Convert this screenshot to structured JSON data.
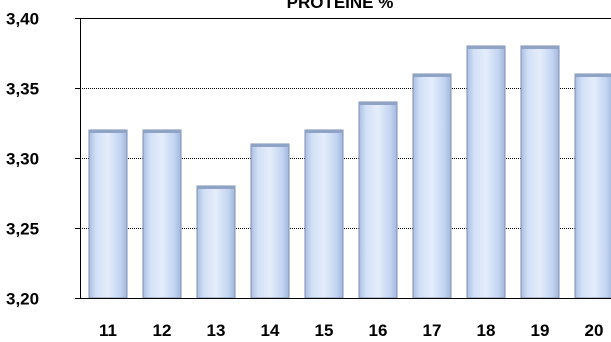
{
  "chart_data": {
    "type": "bar",
    "title": "PROTEINE %",
    "categories": [
      "11",
      "12",
      "13",
      "14",
      "15",
      "16",
      "17",
      "18",
      "19",
      "20"
    ],
    "values": [
      3.32,
      3.32,
      3.28,
      3.31,
      3.32,
      3.34,
      3.36,
      3.38,
      3.38,
      3.36
    ],
    "ylim": [
      3.2,
      3.4
    ],
    "yticks": [
      "3,20",
      "3,25",
      "3,30",
      "3,35",
      "3,40"
    ],
    "ytick_values": [
      3.2,
      3.25,
      3.3,
      3.35,
      3.4
    ],
    "grid": true,
    "bar_color": "#c9daf4",
    "bar_edge_color": "#7f8fae"
  }
}
